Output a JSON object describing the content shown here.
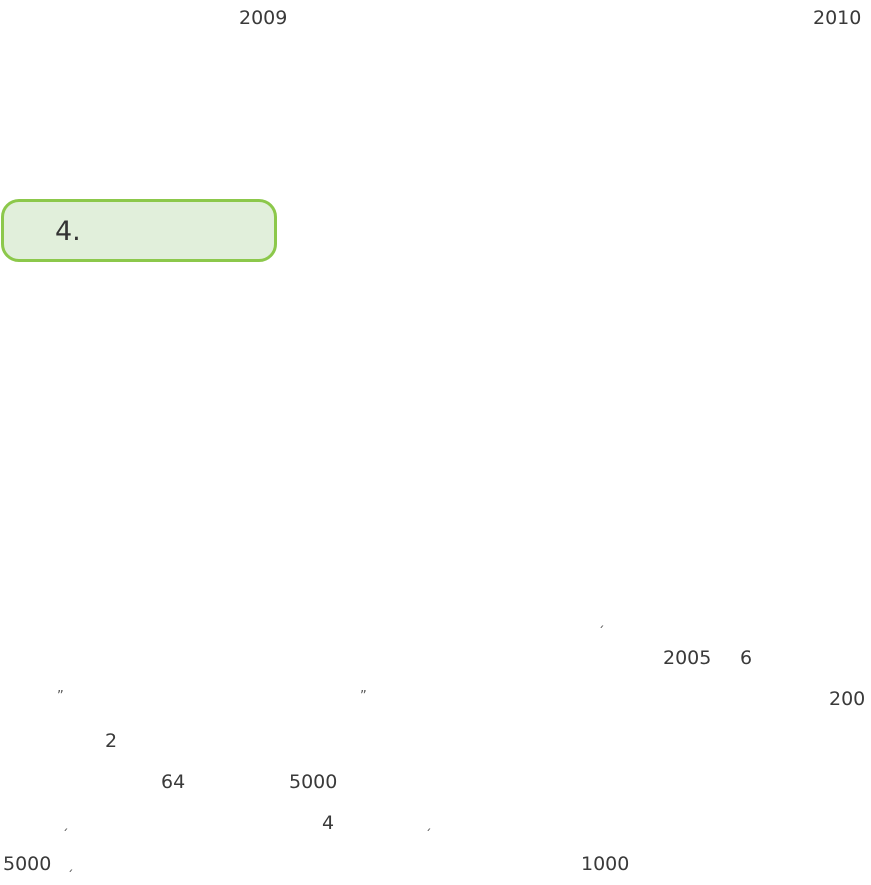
{
  "header": {
    "year_left": "2009",
    "year_right": "2010"
  },
  "section": {
    "number": "4."
  },
  "body": {
    "mark_1": "ˏ",
    "year_2005": "2005",
    "month_6": "6",
    "quote_open": "”",
    "quote_close": "”",
    "num_200": "200",
    "num_2": "2",
    "num_64": "64",
    "num_5000_a": "5000",
    "mark_2": "ˏ",
    "num_4": "4",
    "mark_3": "ˏ",
    "num_5000_b": "5000",
    "mark_4": "ˏ",
    "num_1000": "1000"
  }
}
